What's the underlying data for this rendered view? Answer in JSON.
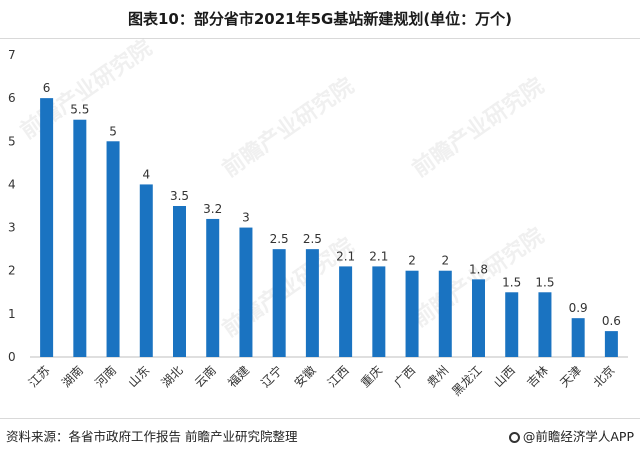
{
  "title": "图表10：部分省市2021年5G基站新建规划(单位：万个)",
  "source": "资料来源：各省市政府工作报告 前瞻产业研究院整理",
  "brand": "@前瞻经济学人APP",
  "watermark": "前瞻产业研究院",
  "colors": {
    "bar": "#1a73c1",
    "axis": "#bfbfbf",
    "text": "#333333"
  },
  "chart_data": {
    "type": "bar",
    "categories": [
      "江苏",
      "湖南",
      "河南",
      "山东",
      "湖北",
      "云南",
      "福建",
      "辽宁",
      "安徽",
      "江西",
      "重庆",
      "广西",
      "贵州",
      "黑龙江",
      "山西",
      "吉林",
      "天津",
      "北京"
    ],
    "values": [
      6,
      5.5,
      5,
      4,
      3.5,
      3.2,
      3,
      2.5,
      2.5,
      2.1,
      2.1,
      2,
      2,
      1.8,
      1.5,
      1.5,
      0.9,
      0.6
    ],
    "value_labels": [
      "6",
      "5.5",
      "5",
      "4",
      "3.5",
      "3.2",
      "3",
      "2.5",
      "2.5",
      "2.1",
      "2.1",
      "2",
      "2",
      "1.8",
      "1.5",
      "1.5",
      "0.9",
      "0.6"
    ],
    "yticks": [
      "0",
      "1",
      "2",
      "3",
      "4",
      "5",
      "6",
      "7"
    ],
    "ylim": [
      0,
      7
    ],
    "grid": false,
    "legend": "none"
  }
}
